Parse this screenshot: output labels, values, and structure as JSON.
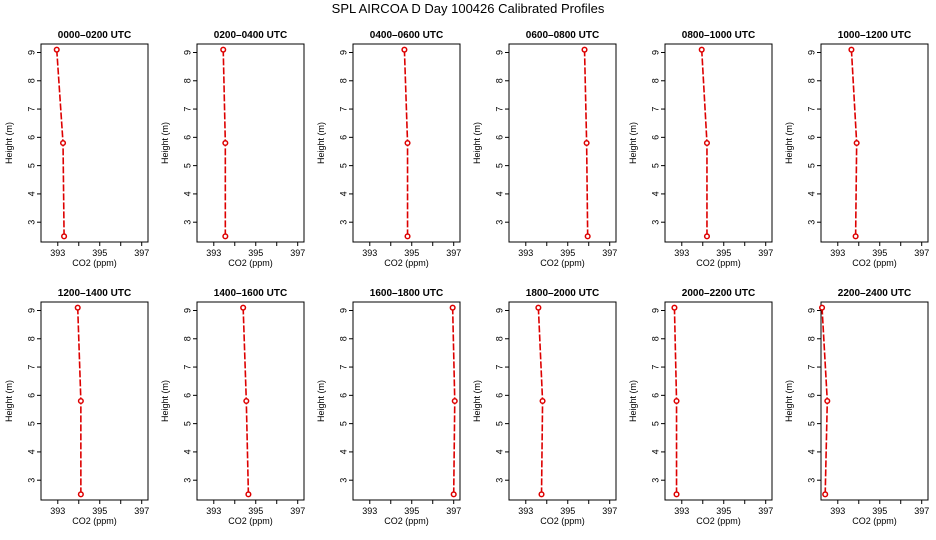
{
  "page": {
    "title": "SPL AIRCOA D  Day 100426  Calibrated Profiles"
  },
  "chart_data": {
    "type": "line",
    "xlabel": "CO2 (ppm)",
    "ylabel": "Height (m)",
    "xlim": [
      392.2,
      397.3
    ],
    "ylim": [
      2.3,
      9.3
    ],
    "xticks": [
      393,
      394,
      395,
      396,
      397
    ],
    "xtick_labels": [
      "393",
      "",
      "395",
      "",
      "397"
    ],
    "yticks": [
      3,
      4,
      5,
      6,
      7,
      8,
      9
    ],
    "line_color": "#dd0000",
    "heights": [
      2.5,
      5.8,
      9.1
    ],
    "panels": [
      {
        "title": "0000–0200 UTC",
        "co2": [
          393.3,
          393.25,
          392.95
        ]
      },
      {
        "title": "0200–0400 UTC",
        "co2": [
          393.55,
          393.55,
          393.45
        ]
      },
      {
        "title": "0400–0600 UTC",
        "co2": [
          394.8,
          394.8,
          394.65
        ]
      },
      {
        "title": "0600–0800 UTC",
        "co2": [
          395.95,
          395.9,
          395.8
        ]
      },
      {
        "title": "0800–1000 UTC",
        "co2": [
          394.2,
          394.2,
          393.95
        ]
      },
      {
        "title": "1000–1200 UTC",
        "co2": [
          393.85,
          393.9,
          393.65
        ]
      },
      {
        "title": "1200–1400 UTC",
        "co2": [
          394.1,
          394.1,
          393.95
        ]
      },
      {
        "title": "1400–1600 UTC",
        "co2": [
          394.65,
          394.55,
          394.4
        ]
      },
      {
        "title": "1600–1800 UTC",
        "co2": [
          397.0,
          397.05,
          396.95
        ]
      },
      {
        "title": "1800–2000 UTC",
        "co2": [
          393.75,
          393.8,
          393.6
        ]
      },
      {
        "title": "2000–2200 UTC",
        "co2": [
          392.75,
          392.75,
          392.65
        ]
      },
      {
        "title": "2200–2400 UTC",
        "co2": [
          392.4,
          392.5,
          392.25
        ]
      }
    ]
  }
}
